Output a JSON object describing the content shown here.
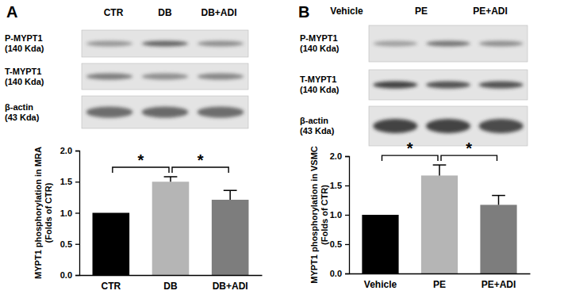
{
  "chart_data": [
    {
      "type": "bar",
      "y_label": [
        "MYPT1 phosphorylation in MRA",
        "(Folds of CTR)"
      ],
      "categories": [
        "CTR",
        "DB",
        "DB+ADI"
      ],
      "values": [
        1.0,
        1.5,
        1.21
      ],
      "errors": [
        0,
        0.08,
        0.15
      ],
      "colors": [
        "#000000",
        "#b5b5b5",
        "#7d7d7d"
      ],
      "ylim": [
        0,
        2.0
      ],
      "yticks": [
        {
          "value": 0,
          "label": "0.0"
        },
        {
          "value": 0.5,
          "label": "0.5"
        },
        {
          "value": 1,
          "label": "1.0"
        },
        {
          "value": 1.5,
          "label": "1.5"
        },
        {
          "value": 2,
          "label": "2.0"
        }
      ],
      "annotations": [
        {
          "text": "*",
          "from": 0,
          "to": 1
        },
        {
          "text": "*",
          "from": 1,
          "to": 2
        }
      ]
    },
    {
      "type": "bar",
      "y_label": [
        "MYPT1 phosphorylation in VSMC",
        "(Folds of CTR)"
      ],
      "categories": [
        "Vehicle",
        "PE",
        "PE+ADI"
      ],
      "values": [
        1.0,
        1.67,
        1.17
      ],
      "errors": [
        0,
        0.18,
        0.16
      ],
      "colors": [
        "#000000",
        "#b5b5b5",
        "#7d7d7d"
      ],
      "ylim": [
        0,
        2.0
      ],
      "yticks": [
        {
          "value": 0,
          "label": "0.0"
        },
        {
          "value": 0.5,
          "label": "0.5"
        },
        {
          "value": 1,
          "label": "1.0"
        },
        {
          "value": 1.5,
          "label": "1.5"
        },
        {
          "value": 2,
          "label": "2.0"
        }
      ],
      "annotations": [
        {
          "text": "*",
          "from": 0,
          "to": 1
        },
        {
          "text": "*",
          "from": 1,
          "to": 2
        }
      ]
    }
  ],
  "panels": [
    {
      "label": "A",
      "lanes": [
        "CTR",
        "DB",
        "DB+ADI"
      ],
      "rows": [
        {
          "lines": [
            "P-MYPT1",
            "(140 Kda)"
          ]
        },
        {
          "lines": [
            "T-MYPT1",
            "(140 Kda)"
          ]
        },
        {
          "lines": [
            "β-actin",
            "(43 Kda)"
          ]
        }
      ]
    },
    {
      "label": "B",
      "lanes": [
        "Vehicle",
        "PE",
        "PE+ADI"
      ],
      "rows": [
        {
          "lines": [
            "P-MYPT1",
            "(140 Kda)"
          ]
        },
        {
          "lines": [
            "T-MYPT1",
            "(140 Kda)"
          ]
        },
        {
          "lines": [
            "β-actin",
            "(43 Kda)"
          ]
        }
      ]
    }
  ]
}
